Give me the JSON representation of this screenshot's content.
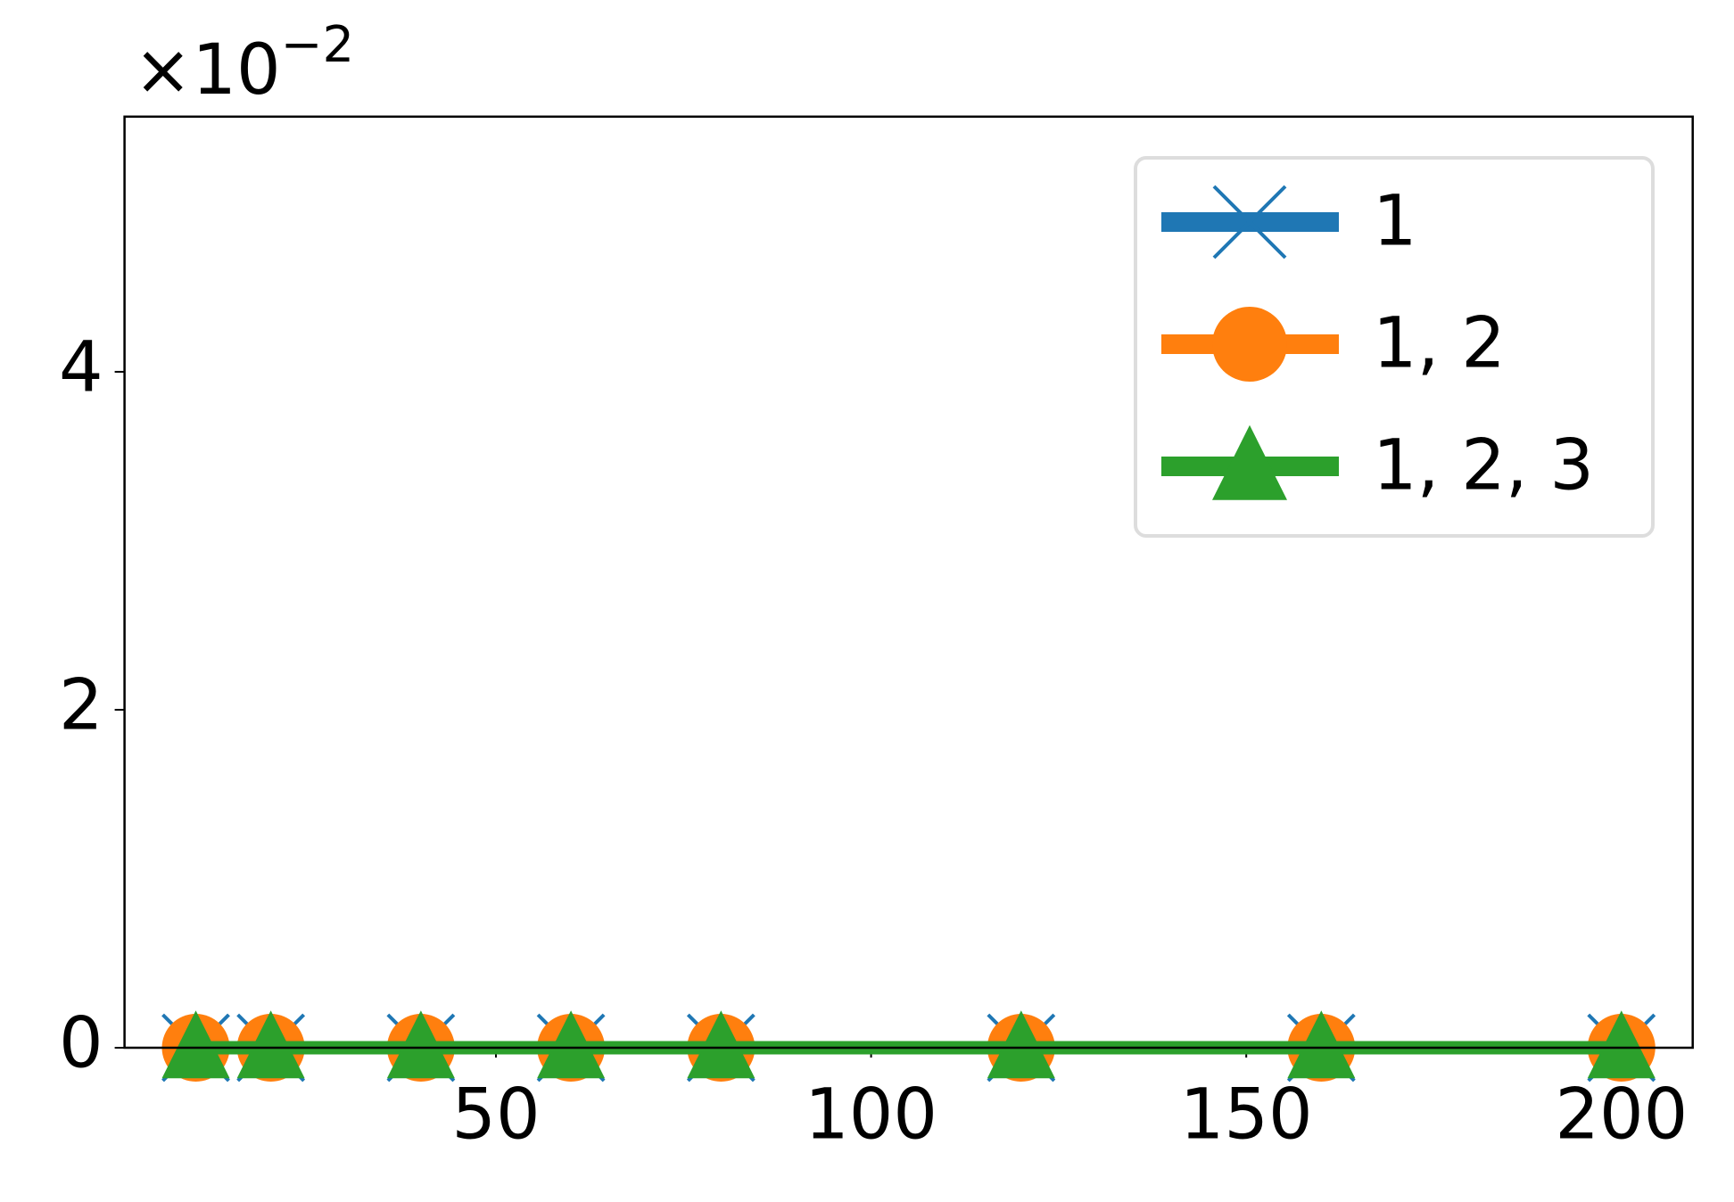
{
  "chart_data": {
    "type": "line",
    "y_offset_text": {
      "base": "×10",
      "exponent": "−2"
    },
    "x": [
      10,
      20,
      40,
      60,
      80,
      120,
      160,
      200
    ],
    "series": [
      {
        "name": "1",
        "color": "#1f77b4",
        "marker": "x",
        "values": [
          0,
          0,
          0,
          0,
          0,
          0,
          0,
          0
        ]
      },
      {
        "name": "1, 2",
        "color": "#ff7f0e",
        "marker": "o",
        "values": [
          0,
          0,
          0,
          0,
          0,
          0,
          0,
          0
        ]
      },
      {
        "name": "1, 2, 3",
        "color": "#2ca02c",
        "marker": "^",
        "values": [
          0,
          0,
          0,
          0,
          0,
          0,
          0,
          0
        ]
      }
    ],
    "xlim": [
      0.5,
      209.5
    ],
    "ylim": [
      0,
      5.51
    ],
    "xticks": [
      50,
      100,
      150,
      200
    ],
    "yticks": [
      0,
      2,
      4
    ],
    "grid": false,
    "legend": "upper right"
  }
}
